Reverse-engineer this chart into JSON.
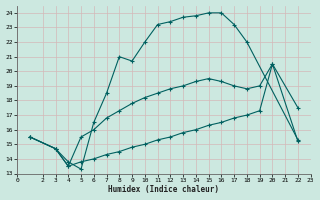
{
  "xlabel": "Humidex (Indice chaleur)",
  "bg_color": "#cce8e0",
  "grid_color": "#b8d8d0",
  "line_color": "#006060",
  "xlim": [
    0,
    23
  ],
  "ylim": [
    13,
    24.5
  ],
  "xticks": [
    0,
    2,
    3,
    4,
    5,
    6,
    7,
    8,
    9,
    10,
    11,
    12,
    13,
    14,
    15,
    16,
    17,
    18,
    19,
    20,
    21,
    22,
    23
  ],
  "yticks": [
    13,
    14,
    15,
    16,
    17,
    18,
    19,
    20,
    21,
    22,
    23,
    24
  ],
  "curve1_x": [
    1,
    3,
    4,
    5,
    6,
    7,
    8,
    9,
    10,
    11,
    12,
    13,
    14,
    15,
    16,
    17,
    18,
    22
  ],
  "curve1_y": [
    15.5,
    14.7,
    13.8,
    13.3,
    16.5,
    18.5,
    21.0,
    20.7,
    22.0,
    23.2,
    23.4,
    23.7,
    23.8,
    24.0,
    24.0,
    23.2,
    22.0,
    15.3
  ],
  "curve2_x": [
    1,
    3,
    4,
    5,
    6,
    7,
    8,
    9,
    10,
    11,
    12,
    13,
    14,
    15,
    16,
    17,
    18,
    19,
    20,
    22
  ],
  "curve2_y": [
    15.5,
    14.7,
    13.5,
    15.5,
    16.0,
    16.8,
    17.3,
    17.8,
    18.2,
    18.5,
    18.8,
    19.0,
    19.3,
    19.5,
    19.3,
    19.0,
    18.8,
    19.0,
    20.5,
    17.5
  ],
  "curve3_x": [
    1,
    3,
    4,
    5,
    6,
    7,
    8,
    9,
    10,
    11,
    12,
    13,
    14,
    15,
    16,
    17,
    18,
    19,
    20,
    22
  ],
  "curve3_y": [
    15.5,
    14.7,
    13.5,
    13.8,
    14.0,
    14.3,
    14.5,
    14.8,
    15.0,
    15.3,
    15.5,
    15.8,
    16.0,
    16.3,
    16.5,
    16.8,
    17.0,
    17.3,
    20.5,
    15.2
  ]
}
